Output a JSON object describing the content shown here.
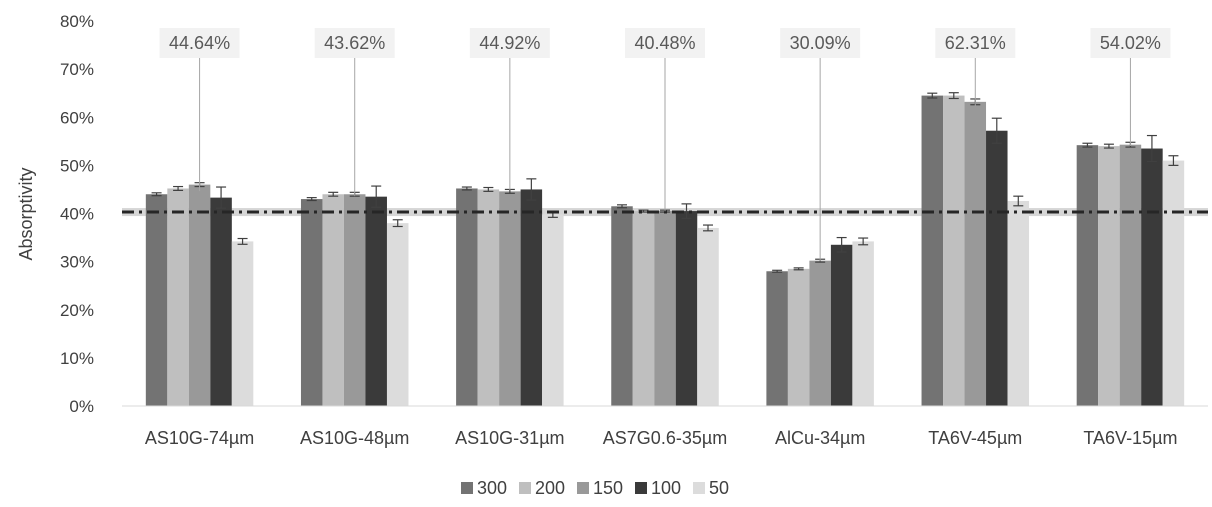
{
  "chart_data": {
    "type": "bar",
    "title": "",
    "xlabel": "",
    "ylabel": "Absorptivity",
    "ylim": [
      0,
      80
    ],
    "y_ticks": [
      0,
      10,
      20,
      30,
      40,
      50,
      60,
      70,
      80
    ],
    "y_tick_suffix": "%",
    "grid": false,
    "legend_position": "bottom",
    "categories": [
      "AS10G-74µm",
      "AS10G-48µm",
      "AS10G-31µm",
      "AS7G0.6-35µm",
      "AlCu-34µm",
      "TA6V-45µm",
      "TA6V-15µm"
    ],
    "series": [
      {
        "name": "300",
        "color": "#737373",
        "values": [
          44,
          43,
          45.2,
          41.5,
          28,
          64.5,
          54.2
        ],
        "errors": [
          0.3,
          0.3,
          0.3,
          0.3,
          0.2,
          0.5,
          0.4
        ]
      },
      {
        "name": "200",
        "color": "#bfbfbf",
        "values": [
          45.2,
          44,
          45,
          40.5,
          28.5,
          64.5,
          54
        ],
        "errors": [
          0.4,
          0.4,
          0.4,
          0.2,
          0.2,
          0.6,
          0.4
        ]
      },
      {
        "name": "150",
        "color": "#999999",
        "values": [
          46,
          44,
          44.6,
          40.5,
          30.2,
          63.2,
          54.3
        ],
        "errors": [
          0.4,
          0.4,
          0.4,
          0.2,
          0.3,
          0.6,
          0.5
        ]
      },
      {
        "name": "100",
        "color": "#3a3a3a",
        "values": [
          43.3,
          43.5,
          45,
          40.5,
          33.5,
          57.2,
          53.5
        ],
        "errors": [
          2.2,
          2.2,
          2.2,
          1.5,
          1.5,
          2.6,
          2.7
        ]
      },
      {
        "name": "50",
        "color": "#dcdcdc",
        "values": [
          34.2,
          38,
          39.8,
          37,
          34.2,
          42.6,
          51
        ],
        "errors": [
          0.6,
          0.7,
          0.6,
          0.6,
          0.7,
          1.0,
          1.0
        ]
      }
    ],
    "callouts": [
      "44.64%",
      "43.62%",
      "44.92%",
      "40.48%",
      "30.09%",
      "62.31%",
      "54.02%"
    ],
    "callout_values": [
      44.64,
      43.62,
      44.92,
      40.48,
      30.09,
      62.31,
      54.02
    ],
    "reference_line": 40.3
  }
}
